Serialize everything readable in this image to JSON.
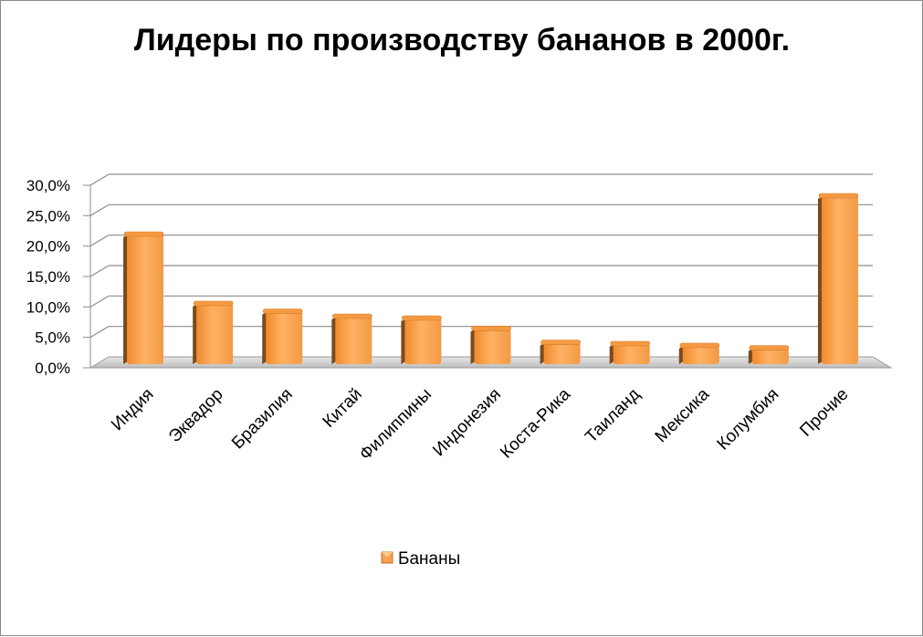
{
  "chart_data": {
    "type": "bar",
    "title": "Лидеры по производству бананов в 2000г.",
    "xlabel": "",
    "ylabel": "",
    "ylim": [
      0,
      30
    ],
    "y_ticks": [
      0,
      5,
      10,
      15,
      20,
      25,
      30
    ],
    "y_tick_labels": [
      "0,0%",
      "5,0%",
      "10,0%",
      "15,0%",
      "20,0%",
      "25,0%",
      "30,0%"
    ],
    "grid": true,
    "legend_position": "bottom",
    "categories": [
      "Индия",
      "Эквадор",
      "Бразилия",
      "Китай",
      "Филиппины",
      "Индонезия",
      "Коста-Рика",
      "Таиланд",
      "Мексика",
      "Колумбия",
      "Прочие"
    ],
    "series": [
      {
        "name": "Бананы",
        "color": "#f7a04f",
        "values": [
          21.0,
          9.6,
          8.3,
          7.5,
          7.2,
          5.5,
          3.2,
          3.0,
          2.7,
          2.3,
          27.3
        ]
      }
    ]
  }
}
